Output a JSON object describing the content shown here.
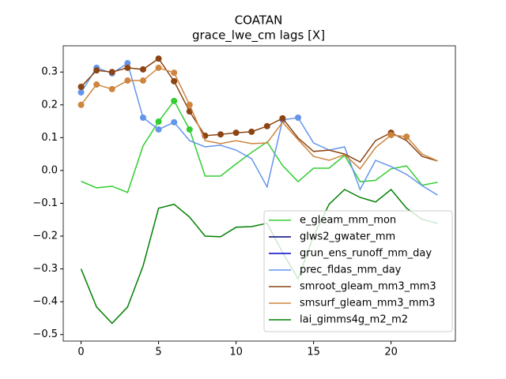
{
  "chart_data": {
    "type": "line",
    "title": "COATAN",
    "subtitle": "grace_lwe_cm lags [X]",
    "x": [
      0,
      1,
      2,
      3,
      4,
      5,
      6,
      7,
      8,
      9,
      10,
      11,
      12,
      13,
      14,
      15,
      16,
      17,
      18,
      19,
      20,
      21,
      22,
      23
    ],
    "xlim": [
      -1.15,
      24.15
    ],
    "xticks": [
      0,
      5,
      10,
      15,
      20
    ],
    "ylim": [
      -0.52,
      0.38
    ],
    "yticks": [
      {
        "value": -0.5,
        "label": "−0.5"
      },
      {
        "value": -0.4,
        "label": "−0.4"
      },
      {
        "value": -0.3,
        "label": "−0.3"
      },
      {
        "value": -0.2,
        "label": "−0.2"
      },
      {
        "value": -0.1,
        "label": "−0.1"
      },
      {
        "value": 0,
        "label": "0.0"
      },
      0.1,
      0.2,
      0.3
    ],
    "legend": "lower right",
    "series": [
      {
        "name": "e_gleam_mm_mon",
        "color": "#32cd32",
        "markers": [
          5,
          6,
          7
        ],
        "values": [
          -0.033,
          -0.053,
          -0.048,
          -0.067,
          0.075,
          0.149,
          0.212,
          0.125,
          -0.017,
          -0.017,
          0.02,
          0.055,
          0.087,
          0.015,
          -0.034,
          0.007,
          0.007,
          0.046,
          -0.034,
          -0.03,
          0.005,
          0.014,
          -0.045,
          -0.036
        ]
      },
      {
        "name": "glws2_gwater_mm",
        "color": "#000080",
        "markers": [],
        "values": [
          null,
          null,
          null,
          null,
          null,
          null,
          null,
          null,
          null,
          null,
          null,
          null,
          null,
          null,
          null,
          null,
          null,
          null,
          null,
          null,
          null,
          null,
          null,
          null
        ]
      },
      {
        "name": "grun_ens_runoff_mm_day",
        "color": "#0000cd",
        "markers": [],
        "values": [
          null,
          null,
          null,
          null,
          null,
          null,
          null,
          null,
          null,
          null,
          null,
          null,
          null,
          null,
          null,
          null,
          null,
          null,
          null,
          null,
          null,
          null,
          null,
          null
        ]
      },
      {
        "name": "prec_fldas_mm_day",
        "color": "#6495ed",
        "markers": [
          0,
          1,
          2,
          3,
          4,
          5,
          6,
          13,
          14
        ],
        "values": [
          0.238,
          0.313,
          0.296,
          0.327,
          0.161,
          0.125,
          0.147,
          0.091,
          0.072,
          0.077,
          0.062,
          0.036,
          -0.05,
          0.154,
          0.161,
          0.084,
          0.062,
          0.072,
          -0.058,
          0.031,
          0.012,
          -0.012,
          -0.046,
          -0.075
        ]
      },
      {
        "name": "smroot_gleam_mm3_mm3",
        "color": "#8b4513",
        "markers": [
          0,
          1,
          2,
          3,
          4,
          5,
          6,
          7,
          8,
          9,
          10,
          11,
          12,
          13,
          20
        ],
        "values": [
          0.255,
          0.305,
          0.3,
          0.313,
          0.308,
          0.341,
          0.272,
          0.18,
          0.106,
          0.11,
          0.115,
          0.118,
          0.135,
          0.159,
          0.099,
          0.058,
          0.062,
          0.05,
          0.026,
          0.091,
          0.115,
          0.091,
          0.043,
          0.029
        ]
      },
      {
        "name": "smsurf_gleam_mm3_mm3",
        "color": "#cd853f",
        "markers": [
          0,
          1,
          2,
          3,
          4,
          5,
          6,
          7,
          20,
          21
        ],
        "values": [
          0.2,
          0.262,
          0.248,
          0.274,
          0.274,
          0.313,
          0.298,
          0.2,
          0.091,
          0.082,
          0.091,
          0.082,
          0.084,
          0.147,
          0.094,
          0.043,
          0.031,
          0.048,
          0.005,
          0.07,
          0.108,
          0.103,
          0.05,
          0.029
        ]
      },
      {
        "name": "lai_gimms4g_m2_m2",
        "color": "#008000",
        "markers": [],
        "values": [
          -0.3,
          -0.416,
          -0.466,
          -0.416,
          -0.291,
          -0.115,
          -0.103,
          -0.142,
          -0.2,
          -0.202,
          -0.173,
          -0.171,
          -0.161,
          -0.25,
          -0.33,
          -0.2,
          -0.103,
          -0.058,
          -0.082,
          -0.096,
          -0.058,
          -0.115,
          -0.149,
          -0.161
        ]
      }
    ]
  }
}
